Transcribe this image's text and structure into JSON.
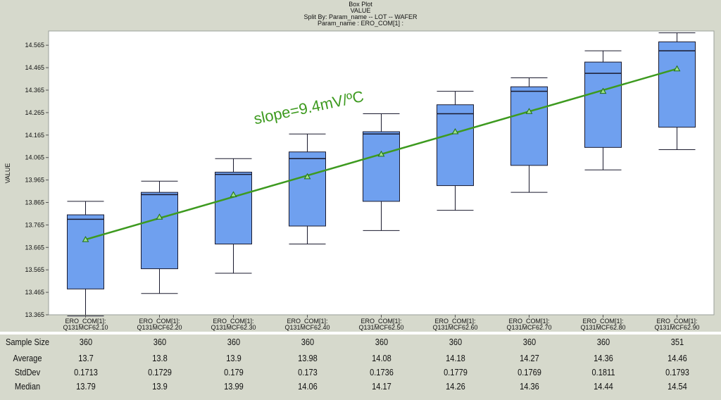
{
  "titles": {
    "line1": "Box Plot",
    "line2": "VALUE",
    "line3": "Split By: Param_name -- LOT -- WAFER",
    "line4": "Param_name : ERO_COM[1] :"
  },
  "chart_data": {
    "type": "box",
    "ylabel": "VALUE",
    "ylim": [
      13.365,
      14.62
    ],
    "yticks": [
      "13.365",
      "13.465",
      "13.565",
      "13.665",
      "13.765",
      "13.865",
      "13.965",
      "14.065",
      "14.165",
      "14.265",
      "14.365",
      "14.465",
      "14.565"
    ],
    "categories": [
      {
        "line1": "ERO_COM[1]:",
        "line2": "Q131MCF62.10"
      },
      {
        "line1": "ERO_COM[1]:",
        "line2": "Q131MCF62.20"
      },
      {
        "line1": "ERO_COM[1]:",
        "line2": "Q131MCF62.30"
      },
      {
        "line1": "ERO_COM[1]:",
        "line2": "Q131MCF62.40"
      },
      {
        "line1": "ERO_COM[1]:",
        "line2": "Q131MCF62.50"
      },
      {
        "line1": "ERO_COM[1]:",
        "line2": "Q131MCF62.60"
      },
      {
        "line1": "ERO_COM[1]:",
        "line2": "Q131MCF62.70"
      },
      {
        "line1": "ERO_COM[1]:",
        "line2": "Q131MCF62.80"
      },
      {
        "line1": "ERO_COM[1]:",
        "line2": "Q131MCF62.90"
      }
    ],
    "boxes": [
      {
        "whisker_low": 13.36,
        "q1": 13.48,
        "median": 13.79,
        "q3": 13.81,
        "whisker_high": 13.87,
        "mean": 13.7
      },
      {
        "whisker_low": 13.46,
        "q1": 13.57,
        "median": 13.9,
        "q3": 13.91,
        "whisker_high": 13.96,
        "mean": 13.8
      },
      {
        "whisker_low": 13.55,
        "q1": 13.68,
        "median": 13.99,
        "q3": 14.0,
        "whisker_high": 14.06,
        "mean": 13.9
      },
      {
        "whisker_low": 13.68,
        "q1": 13.76,
        "median": 14.06,
        "q3": 14.09,
        "whisker_high": 14.17,
        "mean": 13.98
      },
      {
        "whisker_low": 13.74,
        "q1": 13.87,
        "median": 14.17,
        "q3": 14.18,
        "whisker_high": 14.26,
        "mean": 14.08
      },
      {
        "whisker_low": 13.83,
        "q1": 13.94,
        "median": 14.26,
        "q3": 14.3,
        "whisker_high": 14.36,
        "mean": 14.18
      },
      {
        "whisker_low": 13.91,
        "q1": 14.03,
        "median": 14.36,
        "q3": 14.38,
        "whisker_high": 14.42,
        "mean": 14.27
      },
      {
        "whisker_low": 14.01,
        "q1": 14.11,
        "median": 14.44,
        "q3": 14.49,
        "whisker_high": 14.54,
        "mean": 14.36
      },
      {
        "whisker_low": 14.1,
        "q1": 14.2,
        "median": 14.54,
        "q3": 14.58,
        "whisker_high": 14.62,
        "mean": 14.46
      }
    ],
    "trend_annotation": "slope=9.4mV/ºC",
    "colors": {
      "box_fill": "#6fa0ef",
      "box_stroke": "#1a1a2e",
      "trend": "#3d9a1f",
      "mean_marker": "#9be08a",
      "plot_bg": "#ffffff",
      "outer_bg": "#d6d9cc"
    }
  },
  "stats_table": {
    "rows": [
      {
        "label": "Sample Size",
        "values": [
          "360",
          "360",
          "360",
          "360",
          "360",
          "360",
          "360",
          "360",
          "351"
        ]
      },
      {
        "label": "Average",
        "values": [
          "13.7",
          "13.8",
          "13.9",
          "13.98",
          "14.08",
          "14.18",
          "14.27",
          "14.36",
          "14.46"
        ]
      },
      {
        "label": "StdDev",
        "values": [
          "0.1713",
          "0.1729",
          "0.179",
          "0.173",
          "0.1736",
          "0.1779",
          "0.1769",
          "0.1811",
          "0.1793"
        ]
      },
      {
        "label": "Median",
        "values": [
          "13.79",
          "13.9",
          "13.99",
          "14.06",
          "14.17",
          "14.26",
          "14.36",
          "14.44",
          "14.54"
        ]
      }
    ]
  }
}
